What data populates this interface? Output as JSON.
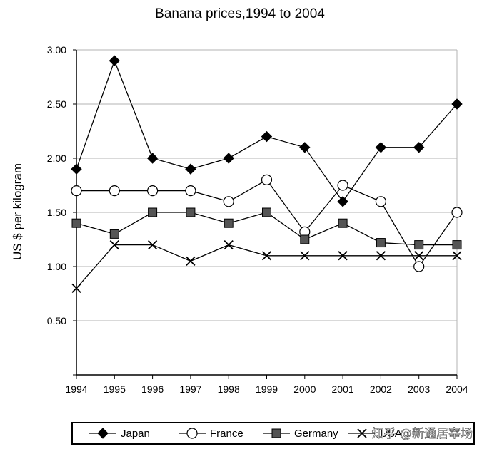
{
  "chart_data": {
    "type": "line",
    "title": "Banana prices,1994 to 2004",
    "xlabel": "",
    "ylabel": "US $ per kilogram",
    "categories": [
      "1994",
      "1995",
      "1996",
      "1997",
      "1998",
      "1999",
      "2000",
      "2001",
      "2002",
      "2003",
      "2004"
    ],
    "y_ticks": [
      "3.00",
      "2.50",
      "2.00",
      "1.50",
      "1.00",
      "0.50"
    ],
    "ylim": [
      0,
      3.0
    ],
    "grid": "horizontal",
    "legend_position": "bottom",
    "series": [
      {
        "name": "Japan",
        "marker": "filled-diamond",
        "values": [
          1.9,
          2.9,
          2.0,
          1.9,
          2.0,
          2.2,
          2.1,
          1.6,
          2.1,
          2.1,
          2.5
        ]
      },
      {
        "name": "France",
        "marker": "open-circle",
        "values": [
          1.7,
          1.7,
          1.7,
          1.7,
          1.6,
          1.8,
          1.32,
          1.75,
          1.6,
          1.0,
          1.5
        ]
      },
      {
        "name": "Germany",
        "marker": "grey-square",
        "values": [
          1.4,
          1.3,
          1.5,
          1.5,
          1.4,
          1.5,
          1.25,
          1.4,
          1.22,
          1.2,
          1.2
        ]
      },
      {
        "name": "USA",
        "marker": "x",
        "values": [
          0.8,
          1.2,
          1.2,
          1.05,
          1.2,
          1.1,
          1.1,
          1.1,
          1.1,
          1.1,
          1.1
        ]
      }
    ]
  },
  "watermark": "知乎 @新通居宰场",
  "colors": {
    "line": "#000000",
    "grid": "#b3b3b3",
    "germany_fill": "#555555"
  }
}
